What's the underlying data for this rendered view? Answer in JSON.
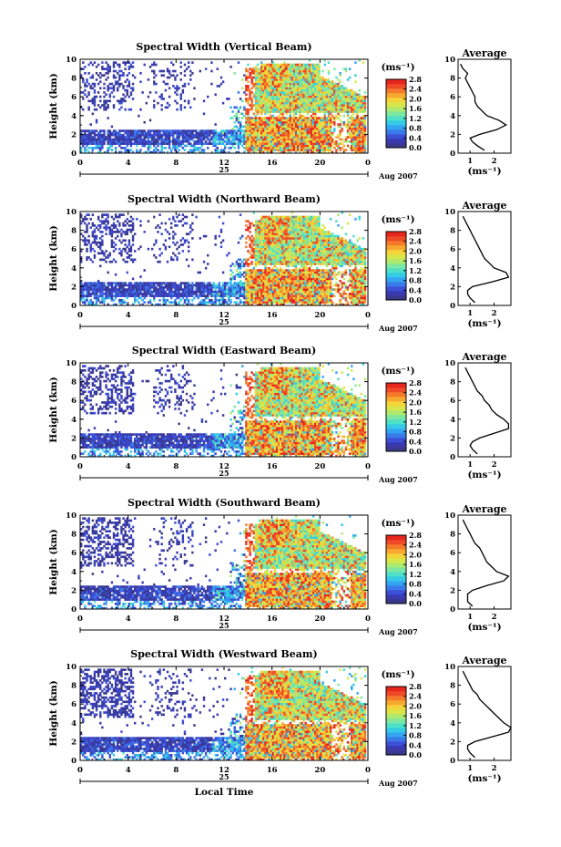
{
  "figure": {
    "x_label": "Local Time",
    "unit_label": "(ms⁻¹)",
    "date_day": "25",
    "date_month": "Aug 2007",
    "average_title": "Average",
    "average_xlabel": "(ms⁻¹)"
  },
  "colorbar": {
    "min": 0.0,
    "max": 2.8,
    "tick_labels": [
      "0.0",
      "0.4",
      "0.8",
      "1.2",
      "1.6",
      "2.0",
      "2.4",
      "2.8"
    ],
    "colors": [
      "#39398c",
      "#3a3ab0",
      "#3c4fd6",
      "#3a7bea",
      "#33a6f2",
      "#35cbe6",
      "#4fe0c8",
      "#7ee8a0",
      "#aeea6e",
      "#d8e64a",
      "#f5d43a",
      "#f7a830",
      "#f47a2a",
      "#ee4a28",
      "#e8261e"
    ]
  },
  "chart_data": [
    {
      "type": "heatmap",
      "title": "Spectral Width (Vertical Beam)",
      "xlabel": "",
      "ylabel": "Height (km)",
      "xlim": [
        0,
        24
      ],
      "ylim": [
        0,
        10
      ],
      "xticks": [
        "0",
        "4",
        "8",
        "12",
        "16",
        "20",
        "0"
      ],
      "yticks": [
        "0",
        "2",
        "4",
        "6",
        "8",
        "10"
      ],
      "average": {
        "heights": [
          0.3,
          0.8,
          1.2,
          1.6,
          2.0,
          2.5,
          3.0,
          3.5,
          4.0,
          4.5,
          5.0,
          5.5,
          6.0,
          6.5,
          7.0,
          7.5,
          8.0,
          8.5,
          9.0,
          9.5
        ],
        "values": [
          1.6,
          1.3,
          1.1,
          1.0,
          1.4,
          2.1,
          2.5,
          2.2,
          1.7,
          1.5,
          1.3,
          1.2,
          1.2,
          1.1,
          1.0,
          0.9,
          0.8,
          0.9,
          0.7,
          0.6
        ],
        "xlim": [
          0.5,
          2.7
        ],
        "xticks": [
          "1",
          "2"
        ]
      }
    },
    {
      "type": "heatmap",
      "title": "Spectral Width (Northward Beam)",
      "xlabel": "",
      "ylabel": "Height (km)",
      "xlim": [
        0,
        24
      ],
      "ylim": [
        0,
        10
      ],
      "xticks": [
        "0",
        "4",
        "8",
        "12",
        "16",
        "20",
        "0"
      ],
      "yticks": [
        "0",
        "2",
        "4",
        "6",
        "8",
        "10"
      ],
      "average": {
        "heights": [
          0.3,
          0.8,
          1.2,
          1.6,
          2.0,
          2.5,
          3.0,
          3.5,
          4.0,
          4.5,
          5.0,
          5.5,
          6.0,
          6.5,
          7.0,
          7.5,
          8.0,
          8.5,
          9.0,
          9.5
        ],
        "values": [
          1.2,
          1.0,
          0.9,
          0.9,
          1.1,
          1.9,
          2.6,
          2.5,
          2.0,
          1.8,
          1.6,
          1.5,
          1.4,
          1.3,
          1.2,
          1.1,
          1.0,
          0.9,
          0.8,
          0.7
        ],
        "xlim": [
          0.5,
          2.7
        ],
        "xticks": [
          "1",
          "2"
        ]
      }
    },
    {
      "type": "heatmap",
      "title": "Spectral Width (Eastward Beam)",
      "xlabel": "",
      "ylabel": "Height (km)",
      "xlim": [
        0,
        24
      ],
      "ylim": [
        0,
        10
      ],
      "xticks": [
        "0",
        "4",
        "8",
        "12",
        "16",
        "20",
        "0"
      ],
      "yticks": [
        "0",
        "2",
        "4",
        "6",
        "8",
        "10"
      ],
      "average": {
        "heights": [
          0.3,
          0.8,
          1.2,
          1.6,
          2.0,
          2.5,
          3.0,
          3.5,
          4.0,
          4.5,
          5.0,
          5.5,
          6.0,
          6.5,
          7.0,
          7.5,
          8.0,
          8.5,
          9.0,
          9.5
        ],
        "values": [
          1.3,
          1.1,
          1.0,
          1.1,
          1.4,
          2.0,
          2.6,
          2.6,
          2.4,
          2.1,
          1.9,
          1.8,
          1.6,
          1.5,
          1.3,
          1.2,
          1.1,
          1.0,
          0.9,
          0.8
        ],
        "xlim": [
          0.5,
          2.7
        ],
        "xticks": [
          "1",
          "2"
        ]
      }
    },
    {
      "type": "heatmap",
      "title": "Spectral Width (Southward Beam)",
      "xlabel": "",
      "ylabel": "Height (km)",
      "xlim": [
        0,
        24
      ],
      "ylim": [
        0,
        10
      ],
      "xticks": [
        "0",
        "4",
        "8",
        "12",
        "16",
        "20",
        "0"
      ],
      "yticks": [
        "0",
        "2",
        "4",
        "6",
        "8",
        "10"
      ],
      "average": {
        "heights": [
          0.3,
          0.8,
          1.2,
          1.6,
          2.0,
          2.5,
          3.0,
          3.5,
          4.0,
          4.5,
          5.0,
          5.5,
          6.0,
          6.5,
          7.0,
          7.5,
          8.0,
          8.5,
          9.0,
          9.5
        ],
        "values": [
          1.1,
          0.9,
          0.9,
          0.9,
          1.1,
          1.7,
          2.4,
          2.6,
          2.1,
          1.9,
          1.7,
          1.6,
          1.5,
          1.4,
          1.2,
          1.1,
          1.0,
          0.9,
          0.8,
          0.7
        ],
        "xlim": [
          0.5,
          2.7
        ],
        "xticks": [
          "1",
          "2"
        ]
      }
    },
    {
      "type": "heatmap",
      "title": "Spectral Width (Westward Beam)",
      "xlabel": "Local Time",
      "ylabel": "Height (km)",
      "xlim": [
        0,
        24
      ],
      "ylim": [
        0,
        10
      ],
      "xticks": [
        "0",
        "4",
        "8",
        "12",
        "16",
        "20",
        "0"
      ],
      "yticks": [
        "0",
        "2",
        "4",
        "6",
        "8",
        "10"
      ],
      "average": {
        "heights": [
          0.3,
          0.8,
          1.2,
          1.6,
          2.0,
          2.5,
          3.0,
          3.5,
          4.0,
          4.5,
          5.0,
          5.5,
          6.0,
          6.5,
          7.0,
          7.5,
          8.0,
          8.5,
          9.0,
          9.5
        ],
        "values": [
          1.2,
          1.0,
          0.9,
          0.9,
          1.2,
          1.9,
          2.6,
          2.7,
          2.4,
          2.2,
          2.0,
          1.8,
          1.6,
          1.4,
          1.3,
          1.1,
          1.0,
          0.9,
          0.8,
          0.7
        ],
        "xlim": [
          0.5,
          2.7
        ],
        "xticks": [
          "1",
          "2"
        ]
      }
    }
  ]
}
